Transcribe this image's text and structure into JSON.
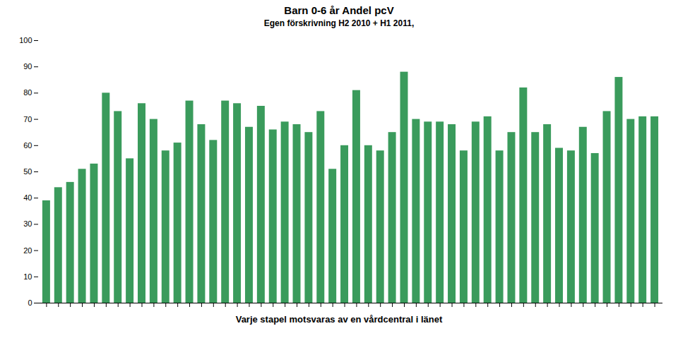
{
  "chart_data": {
    "type": "bar",
    "title": "Barn 0-6 år  Andel pcV",
    "subtitle": "Egen förskrivning   H2 2010 + H1 2011,",
    "caption": "Varje stapel motsvaras av en vårdcentral i länet",
    "categories": [
      null,
      null,
      null,
      null,
      null,
      null,
      null,
      null,
      null,
      null,
      null,
      null,
      null,
      null,
      null,
      null,
      null,
      null,
      null,
      null,
      null,
      null,
      null,
      null,
      null,
      null,
      null,
      null,
      null,
      null,
      null,
      null,
      null,
      null,
      null,
      null,
      null,
      null,
      null,
      null,
      null,
      null,
      null,
      null,
      null,
      null,
      null,
      null,
      null,
      null,
      null,
      null
    ],
    "values": [
      39,
      44,
      46,
      51,
      53,
      80,
      73,
      55,
      76,
      70,
      58,
      61,
      77,
      68,
      62,
      77,
      76,
      67,
      75,
      66,
      69,
      68,
      65,
      73,
      51,
      60,
      81,
      60,
      58,
      65,
      88,
      70,
      69,
      69,
      68,
      58,
      69,
      71,
      58,
      65,
      82,
      65,
      68,
      59,
      58,
      67,
      57,
      73,
      86,
      70,
      71,
      71
    ],
    "color": "#3a9b5c",
    "ylim": [
      0,
      100
    ],
    "yticks": [
      0,
      10,
      20,
      30,
      40,
      50,
      60,
      70,
      80,
      90,
      100
    ],
    "grid": false,
    "tick_labels": "y"
  }
}
